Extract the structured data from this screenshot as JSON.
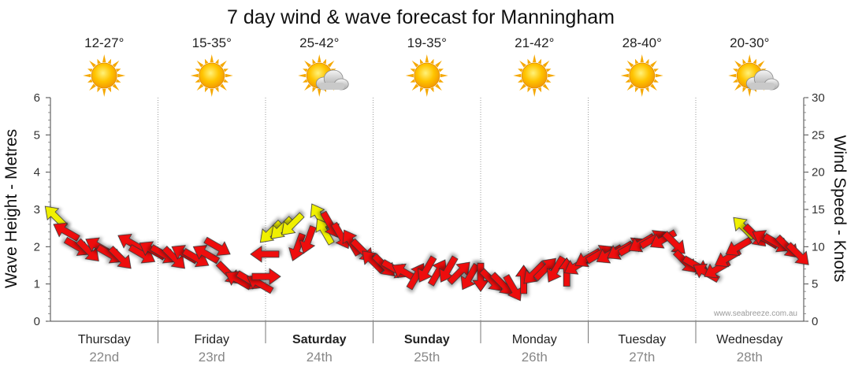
{
  "title": "7 day wind & wave forecast for Manningham",
  "credit": "www.seabreeze.com.au",
  "days": [
    {
      "name": "Thursday",
      "date": "22nd",
      "temp": "12-27°",
      "icon": "sun-icon",
      "bold": false
    },
    {
      "name": "Friday",
      "date": "23rd",
      "temp": "15-35°",
      "icon": "sun-icon",
      "bold": false
    },
    {
      "name": "Saturday",
      "date": "24th",
      "temp": "25-42°",
      "icon": "sun-cloud-icon",
      "bold": true
    },
    {
      "name": "Sunday",
      "date": "25th",
      "temp": "19-35°",
      "icon": "sun-icon",
      "bold": true
    },
    {
      "name": "Monday",
      "date": "26th",
      "temp": "21-42°",
      "icon": "sun-icon",
      "bold": false
    },
    {
      "name": "Tuesday",
      "date": "27th",
      "temp": "28-40°",
      "icon": "sun-icon",
      "bold": false
    },
    {
      "name": "Wednesday",
      "date": "28th",
      "temp": "20-30°",
      "icon": "sun-cloud-icon",
      "bold": false
    }
  ],
  "chart_data": {
    "type": "scatter",
    "title": "7 day wind & wave forecast for Manningham",
    "left_axis": {
      "label": "Wave Height - Metres",
      "range": [
        0,
        6
      ],
      "ticks": [
        "0",
        "1",
        "2",
        "3",
        "4",
        "5",
        "6"
      ]
    },
    "right_axis": {
      "label": "Wind Speed - Knots",
      "range": [
        0,
        30
      ],
      "ticks": [
        "0",
        "5",
        "10",
        "15",
        "20",
        "25",
        "30"
      ]
    },
    "grid": "vertical dotted lines at day boundaries",
    "x_unit": "days from start of Thursday 22nd",
    "colors": {
      "strong_wind": "#ee1111",
      "moderate_wind": "#f0f000",
      "arrow_outline": "#333333"
    },
    "wind_speed_knots": [
      {
        "x": 0.05,
        "knots": 14,
        "dir": 315,
        "color": "yellow"
      },
      {
        "x": 0.15,
        "knots": 12,
        "dir": 300,
        "color": "red"
      },
      {
        "x": 0.25,
        "knots": 10,
        "dir": 120,
        "color": "red"
      },
      {
        "x": 0.35,
        "knots": 9.5,
        "dir": 135,
        "color": "red"
      },
      {
        "x": 0.45,
        "knots": 10,
        "dir": 300,
        "color": "red"
      },
      {
        "x": 0.55,
        "knots": 9,
        "dir": 120,
        "color": "red"
      },
      {
        "x": 0.65,
        "knots": 8.5,
        "dir": 135,
        "color": "red"
      },
      {
        "x": 0.75,
        "knots": 10.5,
        "dir": 300,
        "color": "red"
      },
      {
        "x": 0.85,
        "knots": 9,
        "dir": 120,
        "color": "red"
      },
      {
        "x": 0.95,
        "knots": 9.5,
        "dir": 300,
        "color": "red"
      },
      {
        "x": 1.05,
        "knots": 9,
        "dir": 120,
        "color": "red"
      },
      {
        "x": 1.15,
        "knots": 8.5,
        "dir": 135,
        "color": "red"
      },
      {
        "x": 1.25,
        "knots": 9,
        "dir": 300,
        "color": "red"
      },
      {
        "x": 1.35,
        "knots": 8.5,
        "dir": 120,
        "color": "red"
      },
      {
        "x": 1.45,
        "knots": 9,
        "dir": 300,
        "color": "red"
      },
      {
        "x": 1.55,
        "knots": 10,
        "dir": 120,
        "color": "red"
      },
      {
        "x": 1.65,
        "knots": 6.5,
        "dir": 135,
        "color": "red"
      },
      {
        "x": 1.75,
        "knots": 5.5,
        "dir": 300,
        "color": "red"
      },
      {
        "x": 1.85,
        "knots": 5.5,
        "dir": 120,
        "color": "red"
      },
      {
        "x": 1.95,
        "knots": 5,
        "dir": 300,
        "color": "red"
      },
      {
        "x": 2.0,
        "knots": 6,
        "dir": 90,
        "color": "red"
      },
      {
        "x": 2.0,
        "knots": 9,
        "dir": 270,
        "color": "red"
      },
      {
        "x": 2.05,
        "knots": 12,
        "dir": 225,
        "color": "yellow"
      },
      {
        "x": 2.15,
        "knots": 12.5,
        "dir": 225,
        "color": "yellow"
      },
      {
        "x": 2.25,
        "knots": 13,
        "dir": 225,
        "color": "yellow"
      },
      {
        "x": 2.3,
        "knots": 10,
        "dir": 200,
        "color": "red"
      },
      {
        "x": 2.4,
        "knots": 11,
        "dir": 200,
        "color": "red"
      },
      {
        "x": 2.5,
        "knots": 14,
        "dir": 330,
        "color": "yellow"
      },
      {
        "x": 2.55,
        "knots": 12,
        "dir": 330,
        "color": "yellow"
      },
      {
        "x": 2.6,
        "knots": 13,
        "dir": 150,
        "color": "red"
      },
      {
        "x": 2.7,
        "knots": 11.5,
        "dir": 150,
        "color": "red"
      },
      {
        "x": 2.8,
        "knots": 10.5,
        "dir": 330,
        "color": "red"
      },
      {
        "x": 2.9,
        "knots": 9.5,
        "dir": 135,
        "color": "red"
      },
      {
        "x": 3.0,
        "knots": 8,
        "dir": 315,
        "color": "red"
      },
      {
        "x": 3.1,
        "knots": 7.5,
        "dir": 135,
        "color": "red"
      },
      {
        "x": 3.2,
        "knots": 7,
        "dir": 120,
        "color": "red"
      },
      {
        "x": 3.3,
        "knots": 6.5,
        "dir": 300,
        "color": "red"
      },
      {
        "x": 3.4,
        "knots": 6,
        "dir": 30,
        "color": "red"
      },
      {
        "x": 3.5,
        "knots": 7,
        "dir": 210,
        "color": "red"
      },
      {
        "x": 3.6,
        "knots": 6.5,
        "dir": 30,
        "color": "red"
      },
      {
        "x": 3.7,
        "knots": 7,
        "dir": 210,
        "color": "red"
      },
      {
        "x": 3.8,
        "knots": 6.5,
        "dir": 45,
        "color": "red"
      },
      {
        "x": 3.9,
        "knots": 6,
        "dir": 210,
        "color": "red"
      },
      {
        "x": 4.0,
        "knots": 6,
        "dir": 180,
        "color": "red"
      },
      {
        "x": 4.1,
        "knots": 5.5,
        "dir": 135,
        "color": "red"
      },
      {
        "x": 4.2,
        "knots": 5,
        "dir": 135,
        "color": "red"
      },
      {
        "x": 4.3,
        "knots": 4.5,
        "dir": 150,
        "color": "red"
      },
      {
        "x": 4.4,
        "knots": 5.5,
        "dir": 0,
        "color": "red"
      },
      {
        "x": 4.5,
        "knots": 6.5,
        "dir": 225,
        "color": "red"
      },
      {
        "x": 4.6,
        "knots": 7,
        "dir": 45,
        "color": "red"
      },
      {
        "x": 4.7,
        "knots": 7,
        "dir": 210,
        "color": "red"
      },
      {
        "x": 4.8,
        "knots": 6.5,
        "dir": 0,
        "color": "red"
      },
      {
        "x": 4.9,
        "knots": 7.5,
        "dir": 240,
        "color": "red"
      },
      {
        "x": 5.0,
        "knots": 8.5,
        "dir": 240,
        "color": "red"
      },
      {
        "x": 5.1,
        "knots": 9,
        "dir": 60,
        "color": "red"
      },
      {
        "x": 5.2,
        "knots": 9,
        "dir": 240,
        "color": "red"
      },
      {
        "x": 5.3,
        "knots": 9.5,
        "dir": 240,
        "color": "red"
      },
      {
        "x": 5.4,
        "knots": 10,
        "dir": 60,
        "color": "red"
      },
      {
        "x": 5.5,
        "knots": 10.5,
        "dir": 240,
        "color": "red"
      },
      {
        "x": 5.6,
        "knots": 11,
        "dir": 60,
        "color": "red"
      },
      {
        "x": 5.7,
        "knots": 11,
        "dir": 240,
        "color": "red"
      },
      {
        "x": 5.8,
        "knots": 10.5,
        "dir": 135,
        "color": "red"
      },
      {
        "x": 5.9,
        "knots": 8,
        "dir": 135,
        "color": "red"
      },
      {
        "x": 6.0,
        "knots": 7.5,
        "dir": 120,
        "color": "red"
      },
      {
        "x": 6.1,
        "knots": 6.5,
        "dir": 300,
        "color": "red"
      },
      {
        "x": 6.2,
        "knots": 7,
        "dir": 240,
        "color": "red"
      },
      {
        "x": 6.3,
        "knots": 8.5,
        "dir": 240,
        "color": "red"
      },
      {
        "x": 6.4,
        "knots": 10,
        "dir": 240,
        "color": "red"
      },
      {
        "x": 6.45,
        "knots": 12.5,
        "dir": 315,
        "color": "yellow"
      },
      {
        "x": 6.55,
        "knots": 11.5,
        "dir": 135,
        "color": "red"
      },
      {
        "x": 6.65,
        "knots": 11,
        "dir": 300,
        "color": "red"
      },
      {
        "x": 6.75,
        "knots": 10.5,
        "dir": 120,
        "color": "red"
      },
      {
        "x": 6.85,
        "knots": 10,
        "dir": 135,
        "color": "red"
      },
      {
        "x": 6.95,
        "knots": 9,
        "dir": 135,
        "color": "red"
      }
    ]
  }
}
